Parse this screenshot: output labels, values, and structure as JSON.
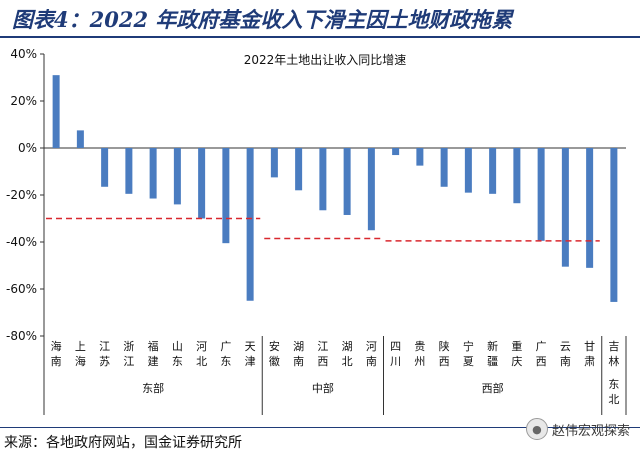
{
  "header": {
    "title": "图表4：2022 年政府基金收入下滑主因土地财政拖累"
  },
  "footer": {
    "source": "来源：各地政府网站，国金证券研究所"
  },
  "watermark": {
    "icon": "wechat-icon",
    "text": "赵伟宏观探索"
  },
  "colors": {
    "bar": "#4a7cc0",
    "avg_line": "#d9282f",
    "axis": "#333333",
    "title_bar": "#1f3b78"
  },
  "chart_data": {
    "type": "bar",
    "title": "2022年土地出让收入同比增速",
    "ylim": [
      -80,
      40
    ],
    "yticks": [
      "40%",
      "20%",
      "0%",
      "-20%",
      "-40%",
      "-60%",
      "-80%"
    ],
    "categories": [
      "海南",
      "上海",
      "江苏",
      "浙江",
      "福建",
      "山东",
      "河北",
      "广东",
      "天津",
      "安徽",
      "湖南",
      "江西",
      "湖北",
      "河南",
      "四川",
      "贵州",
      "陕西",
      "宁夏",
      "新疆",
      "重庆",
      "广西",
      "云南",
      "甘肃",
      "吉林"
    ],
    "values": [
      31,
      7.5,
      -16.5,
      -19.5,
      -21.5,
      -24,
      -30,
      -40.5,
      -65,
      -12.5,
      -18,
      -26.5,
      -28.5,
      -35,
      -3,
      -7.5,
      -16.5,
      -19,
      -19.5,
      -23.5,
      -39.5,
      -50.5,
      -51,
      -65.5
    ],
    "groups": [
      {
        "name": "东部",
        "start": 0,
        "end": 8,
        "average": -30
      },
      {
        "name": "中部",
        "start": 9,
        "end": 13,
        "average": -38.5
      },
      {
        "name": "西部",
        "start": 14,
        "end": 22,
        "average": -39.5
      },
      {
        "name": "东北",
        "start": 23,
        "end": 23
      }
    ]
  }
}
